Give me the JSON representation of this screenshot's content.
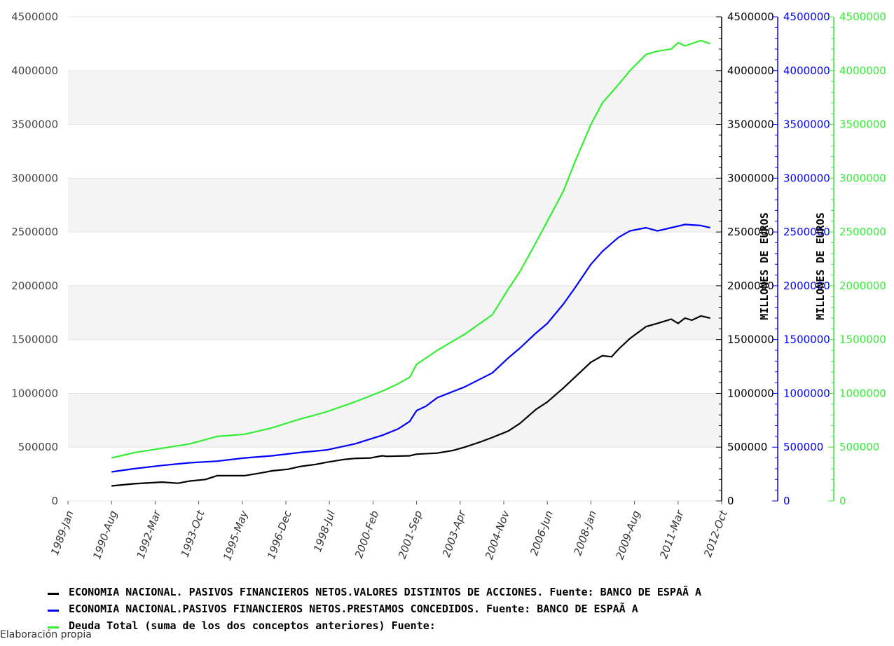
{
  "chart_data": {
    "type": "line",
    "xlabel": "",
    "ylabel": "",
    "right_axis_label": "MILLONES DE EUROS",
    "x_tick_labels": [
      "1989-Jan",
      "1990-Aug",
      "1992-Mar",
      "1993-Oct",
      "1995-May",
      "1996-Dec",
      "1998-Jul",
      "2000-Feb",
      "2001-Sep",
      "2003-Apr",
      "2004-Nov",
      "2006-Jun",
      "2008-Jan",
      "2009-Aug",
      "2011-Mar",
      "2012-Oct"
    ],
    "y_tick_labels": [
      "0",
      "500000",
      "1000000",
      "1500000",
      "2000000",
      "2500000",
      "3000000",
      "3500000",
      "4000000",
      "4500000"
    ],
    "ylim": [
      0,
      4500000
    ],
    "xlim": [
      "1989-01",
      "2012-10"
    ],
    "grid": "horizontal bands",
    "legend_position": "bottom",
    "series": [
      {
        "name": "ECONOMIA NACIONAL. PASIVOS FINANCIEROS NETOS.VALORES DISTINTOS DE ACCIONES.  Fuente: BANCO DE ESPAÃ A",
        "color": "#000000",
        "points": [
          [
            "1990-08",
            140000
          ],
          [
            "1991-06",
            160000
          ],
          [
            "1992-06",
            175000
          ],
          [
            "1993-01",
            165000
          ],
          [
            "1993-06",
            185000
          ],
          [
            "1994-01",
            200000
          ],
          [
            "1994-06",
            235000
          ],
          [
            "1995-06",
            235000
          ],
          [
            "1996-01",
            260000
          ],
          [
            "1996-06",
            280000
          ],
          [
            "1997-01",
            295000
          ],
          [
            "1997-06",
            320000
          ],
          [
            "1998-01",
            340000
          ],
          [
            "1998-06",
            360000
          ],
          [
            "1999-01",
            385000
          ],
          [
            "1999-06",
            395000
          ],
          [
            "2000-01",
            400000
          ],
          [
            "2000-06",
            420000
          ],
          [
            "2000-08",
            415000
          ],
          [
            "2001-06",
            420000
          ],
          [
            "2001-09",
            435000
          ],
          [
            "2002-06",
            445000
          ],
          [
            "2003-01",
            470000
          ],
          [
            "2003-06",
            500000
          ],
          [
            "2004-01",
            550000
          ],
          [
            "2004-06",
            590000
          ],
          [
            "2005-01",
            650000
          ],
          [
            "2005-06",
            720000
          ],
          [
            "2006-01",
            850000
          ],
          [
            "2006-06",
            920000
          ],
          [
            "2007-01",
            1050000
          ],
          [
            "2007-06",
            1150000
          ],
          [
            "2008-01",
            1290000
          ],
          [
            "2008-06",
            1350000
          ],
          [
            "2008-10",
            1340000
          ],
          [
            "2009-01",
            1410000
          ],
          [
            "2009-06",
            1510000
          ],
          [
            "2010-01",
            1620000
          ],
          [
            "2010-06",
            1650000
          ],
          [
            "2010-12",
            1690000
          ],
          [
            "2011-03",
            1650000
          ],
          [
            "2011-06",
            1700000
          ],
          [
            "2011-09",
            1680000
          ],
          [
            "2012-01",
            1720000
          ],
          [
            "2012-05",
            1700000
          ]
        ]
      },
      {
        "name": "ECONOMIA NACIONAL.PASIVOS FINANCIEROS NETOS.PRESTAMOS CONCEDIDOS.  Fuente: BANCO DE ESPAÃ A",
        "color": "#0000ff",
        "points": [
          [
            "1990-08",
            270000
          ],
          [
            "1991-06",
            300000
          ],
          [
            "1992-06",
            330000
          ],
          [
            "1993-06",
            355000
          ],
          [
            "1994-06",
            370000
          ],
          [
            "1995-06",
            400000
          ],
          [
            "1996-06",
            420000
          ],
          [
            "1997-06",
            450000
          ],
          [
            "1998-06",
            475000
          ],
          [
            "1999-06",
            530000
          ],
          [
            "2000-06",
            610000
          ],
          [
            "2001-01",
            670000
          ],
          [
            "2001-06",
            740000
          ],
          [
            "2001-09",
            840000
          ],
          [
            "2002-01",
            880000
          ],
          [
            "2002-06",
            960000
          ],
          [
            "2003-06",
            1060000
          ],
          [
            "2004-06",
            1190000
          ],
          [
            "2005-01",
            1330000
          ],
          [
            "2005-06",
            1420000
          ],
          [
            "2006-01",
            1560000
          ],
          [
            "2006-06",
            1650000
          ],
          [
            "2007-01",
            1830000
          ],
          [
            "2007-06",
            1980000
          ],
          [
            "2008-01",
            2200000
          ],
          [
            "2008-06",
            2320000
          ],
          [
            "2009-01",
            2450000
          ],
          [
            "2009-06",
            2510000
          ],
          [
            "2010-01",
            2540000
          ],
          [
            "2010-06",
            2510000
          ],
          [
            "2010-12",
            2540000
          ],
          [
            "2011-06",
            2570000
          ],
          [
            "2012-01",
            2560000
          ],
          [
            "2012-05",
            2540000
          ]
        ]
      },
      {
        "name": "Deuda Total (suma de los dos conceptos anteriores)  Fuente:",
        "color": "#33ee33",
        "points": [
          [
            "1990-08",
            400000
          ],
          [
            "1991-06",
            450000
          ],
          [
            "1992-06",
            490000
          ],
          [
            "1993-06",
            530000
          ],
          [
            "1994-06",
            600000
          ],
          [
            "1995-06",
            620000
          ],
          [
            "1996-06",
            680000
          ],
          [
            "1997-06",
            760000
          ],
          [
            "1998-06",
            830000
          ],
          [
            "1999-06",
            920000
          ],
          [
            "2000-06",
            1020000
          ],
          [
            "2001-01",
            1090000
          ],
          [
            "2001-06",
            1150000
          ],
          [
            "2001-09",
            1270000
          ],
          [
            "2002-06",
            1400000
          ],
          [
            "2003-06",
            1550000
          ],
          [
            "2004-06",
            1730000
          ],
          [
            "2005-01",
            1970000
          ],
          [
            "2005-06",
            2130000
          ],
          [
            "2006-01",
            2400000
          ],
          [
            "2006-06",
            2600000
          ],
          [
            "2007-01",
            2880000
          ],
          [
            "2007-06",
            3150000
          ],
          [
            "2008-01",
            3500000
          ],
          [
            "2008-06",
            3700000
          ],
          [
            "2009-01",
            3870000
          ],
          [
            "2009-06",
            4000000
          ],
          [
            "2010-01",
            4150000
          ],
          [
            "2010-06",
            4180000
          ],
          [
            "2010-12",
            4200000
          ],
          [
            "2011-03",
            4260000
          ],
          [
            "2011-06",
            4230000
          ],
          [
            "2012-01",
            4280000
          ],
          [
            "2012-05",
            4250000
          ]
        ]
      }
    ]
  },
  "legend": [
    {
      "label": "ECONOMIA NACIONAL. PASIVOS FINANCIEROS NETOS.VALORES DISTINTOS DE ACCIONES.  Fuente: BANCO DE ESPAÃ A",
      "color": "#000000"
    },
    {
      "label": "ECONOMIA NACIONAL.PASIVOS FINANCIEROS NETOS.PRESTAMOS CONCEDIDOS.  Fuente: BANCO DE ESPAÃ A",
      "color": "#0000ff"
    },
    {
      "label": "Deuda Total (suma de los dos conceptos anteriores)  Fuente:",
      "color": "#33ee33"
    }
  ],
  "credit": "Elaboración propia",
  "axis_colors": {
    "left": "#333333",
    "right1": "#000000",
    "right2": "#0000ff",
    "right3": "#33ee33"
  }
}
